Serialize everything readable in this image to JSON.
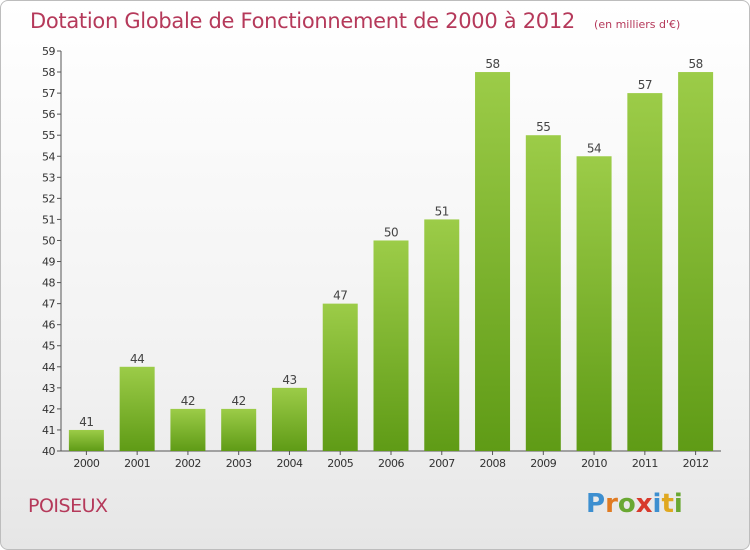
{
  "title": "Dotation Globale de Fonctionnement de 2000 à 2012",
  "unit": "(en milliers d'€)",
  "commune": "POISEUX",
  "logo": {
    "letters": [
      "P",
      "r",
      "o",
      "x",
      "i",
      "t",
      "i"
    ]
  },
  "colors": {
    "bar_top": "#9ccc48",
    "bar_bottom": "#5f9b16",
    "title": "#b5395a"
  },
  "chart_data": {
    "type": "bar",
    "categories": [
      "2000",
      "2001",
      "2002",
      "2003",
      "2004",
      "2005",
      "2006",
      "2007",
      "2008",
      "2009",
      "2010",
      "2011",
      "2012"
    ],
    "values": [
      41,
      44,
      42,
      42,
      43,
      47,
      50,
      51,
      58,
      55,
      54,
      57,
      58
    ],
    "title": "Dotation Globale de Fonctionnement de 2000 à 2012",
    "xlabel": "",
    "ylabel": "",
    "ylim": [
      40,
      59
    ],
    "yticks": [
      40,
      41,
      42,
      43,
      44,
      45,
      46,
      47,
      48,
      49,
      50,
      51,
      52,
      53,
      54,
      55,
      56,
      57,
      58,
      59
    ],
    "grid": false,
    "data_labels": true
  }
}
